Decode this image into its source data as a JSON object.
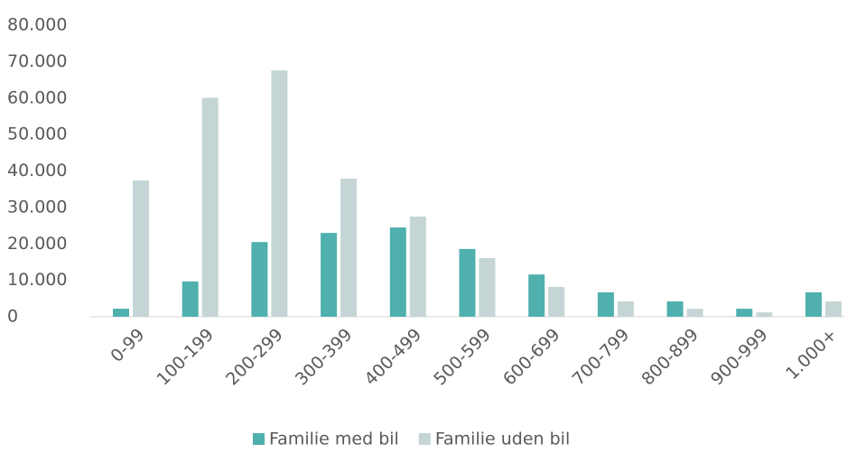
{
  "chart_data": {
    "type": "bar",
    "categories": [
      "0-99",
      "100-199",
      "200-299",
      "300-399",
      "400-499",
      "500-599",
      "600-699",
      "700-799",
      "800-899",
      "900-999",
      "1.000+"
    ],
    "series": [
      {
        "name": "Familie med bil",
        "color": "#4fb0ae",
        "values": [
          2200,
          9700,
          20500,
          23000,
          24500,
          18600,
          11600,
          6700,
          4200,
          2200,
          6700
        ]
      },
      {
        "name": "Familie uden bil",
        "color": "#c5d5d5",
        "values": [
          37400,
          60100,
          67600,
          37900,
          27500,
          16100,
          8200,
          4200,
          2200,
          1200,
          4200
        ]
      }
    ],
    "ylim": [
      0,
      80000
    ],
    "yticks": [
      0,
      {
        "value": 10000,
        "label": "10.000"
      },
      {
        "value": 20000,
        "label": "20.000"
      },
      {
        "value": 30000,
        "label": "30.000"
      },
      {
        "value": 40000,
        "label": "40.000"
      },
      {
        "value": 50000,
        "label": "50.000"
      },
      {
        "value": 60000,
        "label": "60.000"
      },
      {
        "value": 70000,
        "label": "70.000"
      },
      {
        "value": 80000,
        "label": "80.000"
      }
    ],
    "grid": false,
    "legend": "bottom"
  }
}
